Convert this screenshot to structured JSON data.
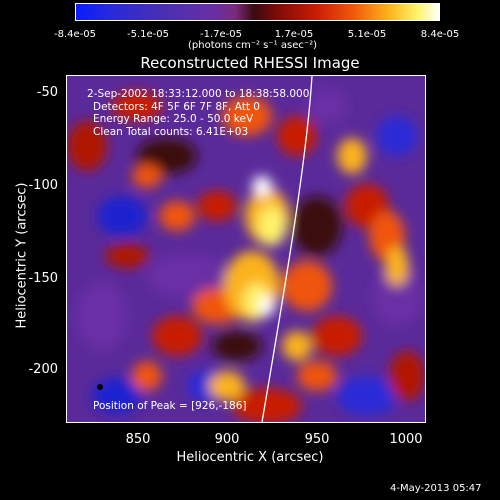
{
  "colorbar": {
    "ticks": [
      "-8.4e-05",
      "-5.1e-05",
      "-1.7e-05",
      "1.7e-05",
      "5.1e-05",
      "8.4e-05"
    ],
    "units": "(photons cm⁻² s⁻¹ asec⁻²)"
  },
  "title": "Reconstructed RHESSI Image",
  "info": {
    "time_range": "2-Sep-2002 18:33:12.000 to 18:38:58.000",
    "detectors": "Detectors: 4F 5F 6F 7F 8F, Att 0",
    "energy": "Energy Range: 25.0 - 50.0 keV",
    "clean": "Clean    Total counts: 6.41E+03",
    "peak": "Position of Peak = [926,-186]"
  },
  "axes": {
    "xlabel": "Heliocentric X (arcsec)",
    "ylabel": "Heliocentric Y (arcsec)",
    "xticks": [
      "850",
      "900",
      "950",
      "1000"
    ],
    "yticks": [
      "-50",
      "-100",
      "-150",
      "-200"
    ]
  },
  "footer": "4-May-2013 05:47"
}
